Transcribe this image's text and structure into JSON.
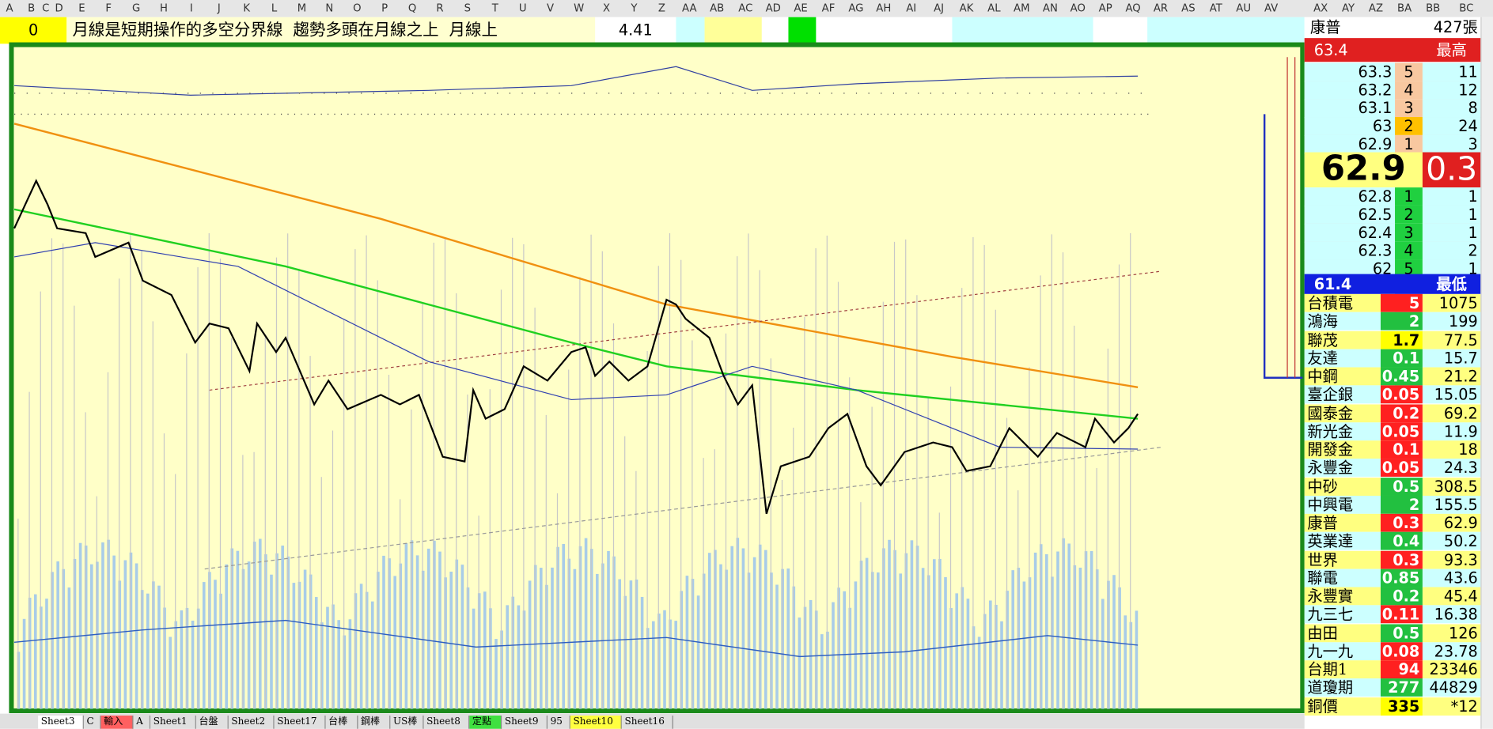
{
  "column_headers": [
    "A",
    "B",
    "C",
    "D",
    "E",
    "F",
    "G",
    "H",
    "I",
    "J",
    "K",
    "L",
    "M",
    "N",
    "O",
    "P",
    "Q",
    "R",
    "S",
    "T",
    "U",
    "V",
    "W",
    "X",
    "Y",
    "Z",
    "AA",
    "AB",
    "AC",
    "AD",
    "AE",
    "AF",
    "AG",
    "AH",
    "AI",
    "AJ",
    "AK",
    "AL",
    "AM",
    "AN",
    "AO",
    "AP",
    "AQ",
    "AR",
    "AS",
    "AT",
    "AU",
    "AV",
    "AX",
    "AY",
    "AZ",
    "BA",
    "BB",
    "BC"
  ],
  "row2": {
    "cell": "0",
    "note": "月線是短期操作的多空分界線  趨勢多頭在月線之上  月線上",
    "value": "4.41"
  },
  "quote": {
    "name": "康普",
    "volume": "427張",
    "high": "63.4",
    "high_label": "最高",
    "asks": [
      {
        "price": "63.3",
        "level": "5",
        "qty": "11"
      },
      {
        "price": "63.2",
        "level": "4",
        "qty": "12"
      },
      {
        "price": "63.1",
        "level": "3",
        "qty": "8"
      },
      {
        "price": "63",
        "level": "2",
        "qty": "24"
      },
      {
        "price": "62.9",
        "level": "1",
        "qty": "3"
      }
    ],
    "last": "62.9",
    "change": "0.3",
    "bids": [
      {
        "price": "62.8",
        "level": "1",
        "qty": "1"
      },
      {
        "price": "62.5",
        "level": "2",
        "qty": "1"
      },
      {
        "price": "62.4",
        "level": "3",
        "qty": "1"
      },
      {
        "price": "62.3",
        "level": "4",
        "qty": "2"
      },
      {
        "price": "62",
        "level": "5",
        "qty": "1"
      }
    ],
    "low": "61.4",
    "low_label": "最低"
  },
  "watchlist": [
    {
      "name": "台積電",
      "change": "5",
      "price": "1075",
      "color": "#ff2020"
    },
    {
      "name": "鴻海",
      "change": "2",
      "price": "199",
      "color": "#22c040"
    },
    {
      "name": "聯茂",
      "change": "1.7",
      "price": "77.5",
      "color": "#ffff00"
    },
    {
      "name": "友達",
      "change": "0.1",
      "price": "15.7",
      "color": "#22c040"
    },
    {
      "name": "中鋼",
      "change": "0.45",
      "price": "21.2",
      "color": "#22c040"
    },
    {
      "name": "臺企銀",
      "change": "0.05",
      "price": "15.05",
      "color": "#ff2020"
    },
    {
      "name": "國泰金",
      "change": "0.2",
      "price": "69.2",
      "color": "#ff2020"
    },
    {
      "name": "新光金",
      "change": "0.05",
      "price": "11.9",
      "color": "#ff2020"
    },
    {
      "name": "開發金",
      "change": "0.1",
      "price": "18",
      "color": "#ff2020"
    },
    {
      "name": "永豐金",
      "change": "0.05",
      "price": "24.3",
      "color": "#ff2020"
    },
    {
      "name": "中砂",
      "change": "0.5",
      "price": "308.5",
      "color": "#22c040"
    },
    {
      "name": "中興電",
      "change": "2",
      "price": "155.5",
      "color": "#22c040"
    },
    {
      "name": "康普",
      "change": "0.3",
      "price": "62.9",
      "color": "#ff2020"
    },
    {
      "name": "英業達",
      "change": "0.4",
      "price": "50.2",
      "color": "#22c040"
    },
    {
      "name": "世界",
      "change": "0.3",
      "price": "93.3",
      "color": "#ff2020"
    },
    {
      "name": "聯電",
      "change": "0.85",
      "price": "43.6",
      "color": "#22c040"
    },
    {
      "name": "永豐實",
      "change": "0.2",
      "price": "45.4",
      "color": "#22c040"
    },
    {
      "name": "九三七",
      "change": "0.11",
      "price": "16.38",
      "color": "#ff2020"
    },
    {
      "name": "由田",
      "change": "0.5",
      "price": "126",
      "color": "#22c040"
    },
    {
      "name": "九一九",
      "change": "0.08",
      "price": "23.78",
      "color": "#ff2020"
    },
    {
      "name": "台期1",
      "change": "94",
      "price": "23346",
      "color": "#ff2020"
    },
    {
      "name": "道瓊期",
      "change": "277",
      "price": "44829",
      "color": "#22c040"
    },
    {
      "name": "銅價",
      "change": "335",
      "price": "*12",
      "color": "#ffff00"
    }
  ],
  "sheet_tabs": [
    "Sheet3",
    "C",
    "輸入",
    "A",
    "Sheet1",
    "台盤",
    "Sheet2",
    "Sheet17",
    "台棒",
    "鋼棒",
    "US棒",
    "Sheet8",
    "定點",
    "Sheet9",
    "95",
    "Sheet10",
    "Sheet16"
  ]
}
